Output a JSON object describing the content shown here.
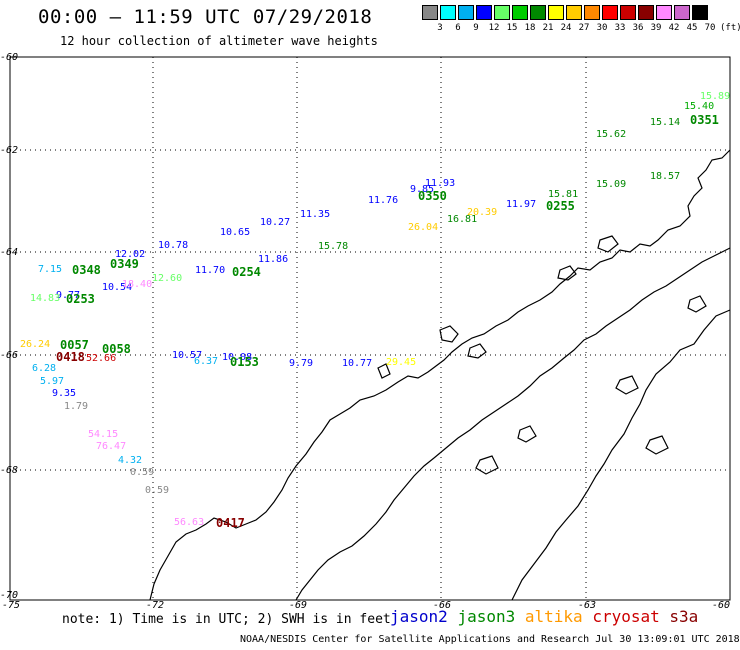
{
  "header": {
    "title": "00:00 – 11:59 UTC 07/29/2018",
    "subtitle": "12 hour collection of altimeter wave heights"
  },
  "legend": {
    "unit": "(ft)",
    "items": [
      {
        "label": "3",
        "color": "#888888"
      },
      {
        "label": "6",
        "color": "#00ffff"
      },
      {
        "label": "9",
        "color": "#00b0f0"
      },
      {
        "label": "12",
        "color": "#0000ff"
      },
      {
        "label": "15",
        "color": "#66ff66"
      },
      {
        "label": "18",
        "color": "#00cc00"
      },
      {
        "label": "21",
        "color": "#008800"
      },
      {
        "label": "24",
        "color": "#ffff00"
      },
      {
        "label": "27",
        "color": "#ffcc00"
      },
      {
        "label": "30",
        "color": "#ff8800"
      },
      {
        "label": "33",
        "color": "#ff0000"
      },
      {
        "label": "36",
        "color": "#cc0000"
      },
      {
        "label": "39",
        "color": "#880000"
      },
      {
        "label": "42",
        "color": "#ff88ff"
      },
      {
        "label": "45",
        "color": "#cc66cc"
      },
      {
        "label": "70",
        "color": "#000000"
      }
    ]
  },
  "axes": {
    "lat_labels": [
      "-60",
      "-62",
      "-64",
      "-66",
      "-68",
      "-70"
    ],
    "lon_labels": [
      "-75",
      "-72",
      "-69",
      "-66",
      "-63",
      "-60"
    ]
  },
  "footer": {
    "note": "note: 1) Time is in UTC; 2) SWH is in feet",
    "satellites": [
      {
        "name": "jason2",
        "color": "#0000cc"
      },
      {
        "name": "jason3",
        "color": "#008800"
      },
      {
        "name": "altika",
        "color": "#ff9900"
      },
      {
        "name": "cryosat",
        "color": "#cc0000"
      },
      {
        "name": "s3a",
        "color": "#880000"
      }
    ],
    "credit": "NOAA/NESDIS Center for Satellite Applications and Research   Jul 30 13:09:01 UTC 2018"
  },
  "track_values": [
    {
      "text": "15.40",
      "color": "#00aa00"
    },
    {
      "text": "15.89",
      "color": "#66ff66"
    },
    {
      "text": "15.14",
      "color": "#008800"
    },
    {
      "text": "15.62",
      "color": "#008800"
    },
    {
      "text": "11.93",
      "color": "#0000ff"
    },
    {
      "text": "9.85",
      "color": "#0000ff"
    },
    {
      "text": "11.76",
      "color": "#0000ff"
    },
    {
      "text": "11.35",
      "color": "#0000ff"
    },
    {
      "text": "10.27",
      "color": "#0000ff"
    },
    {
      "text": "10.65",
      "color": "#0000ff"
    },
    {
      "text": "10.78",
      "color": "#0000ff"
    },
    {
      "text": "12.02",
      "color": "#0000ff"
    },
    {
      "text": "18.57",
      "color": "#008800"
    },
    {
      "text": "15.09",
      "color": "#008800"
    },
    {
      "text": "15.81",
      "color": "#008800"
    },
    {
      "text": "11.97",
      "color": "#0000ff"
    },
    {
      "text": "20.39",
      "color": "#ffcc00"
    },
    {
      "text": "16.81",
      "color": "#008800"
    },
    {
      "text": "26.04",
      "color": "#ffcc00"
    },
    {
      "text": "15.78",
      "color": "#008800"
    },
    {
      "text": "11.86",
      "color": "#0000ff"
    },
    {
      "text": "11.70",
      "color": "#0000ff"
    },
    {
      "text": "7.15",
      "color": "#00b0f0"
    },
    {
      "text": "10.54",
      "color": "#0000ff"
    },
    {
      "text": "9.77",
      "color": "#0000ff"
    },
    {
      "text": "14.83",
      "color": "#66ff66"
    },
    {
      "text": "18.40",
      "color": "#ff88ff"
    },
    {
      "text": "12.60",
      "color": "#66ff66"
    },
    {
      "text": "26.24",
      "color": "#ffcc00"
    },
    {
      "text": "10.57",
      "color": "#0000ff"
    },
    {
      "text": "10.08",
      "color": "#0000ff"
    },
    {
      "text": "6.37",
      "color": "#00b0f0"
    },
    {
      "text": "9.79",
      "color": "#0000ff"
    },
    {
      "text": "10.77",
      "color": "#0000ff"
    },
    {
      "text": "29.45",
      "color": "#ffff00"
    },
    {
      "text": "6.28",
      "color": "#00b0f0"
    },
    {
      "text": "5.97",
      "color": "#00b0f0"
    },
    {
      "text": "9.35",
      "color": "#0000ff"
    },
    {
      "text": "1.79",
      "color": "#888888"
    },
    {
      "text": "54.15",
      "color": "#ff88ff"
    },
    {
      "text": "76.47",
      "color": "#ff88ff"
    },
    {
      "text": "4.32",
      "color": "#00b0f0"
    },
    {
      "text": "0.59",
      "color": "#888888"
    },
    {
      "text": "0.59",
      "color": "#888888"
    },
    {
      "text": "56.63",
      "color": "#ff88ff"
    },
    {
      "text": "52.66",
      "color": "#cc0000"
    }
  ],
  "time_labels": [
    {
      "text": "0351",
      "color": "#008800"
    },
    {
      "text": "0350",
      "color": "#008800"
    },
    {
      "text": "0255",
      "color": "#008800"
    },
    {
      "text": "0254",
      "color": "#008800"
    },
    {
      "text": "0348",
      "color": "#008800"
    },
    {
      "text": "0349",
      "color": "#008800"
    },
    {
      "text": "0253",
      "color": "#008800"
    },
    {
      "text": "0057",
      "color": "#008800"
    },
    {
      "text": "0058",
      "color": "#008800"
    },
    {
      "text": "0153",
      "color": "#008800"
    },
    {
      "text": "0418",
      "color": "#880000"
    },
    {
      "text": "0417",
      "color": "#880000"
    }
  ]
}
